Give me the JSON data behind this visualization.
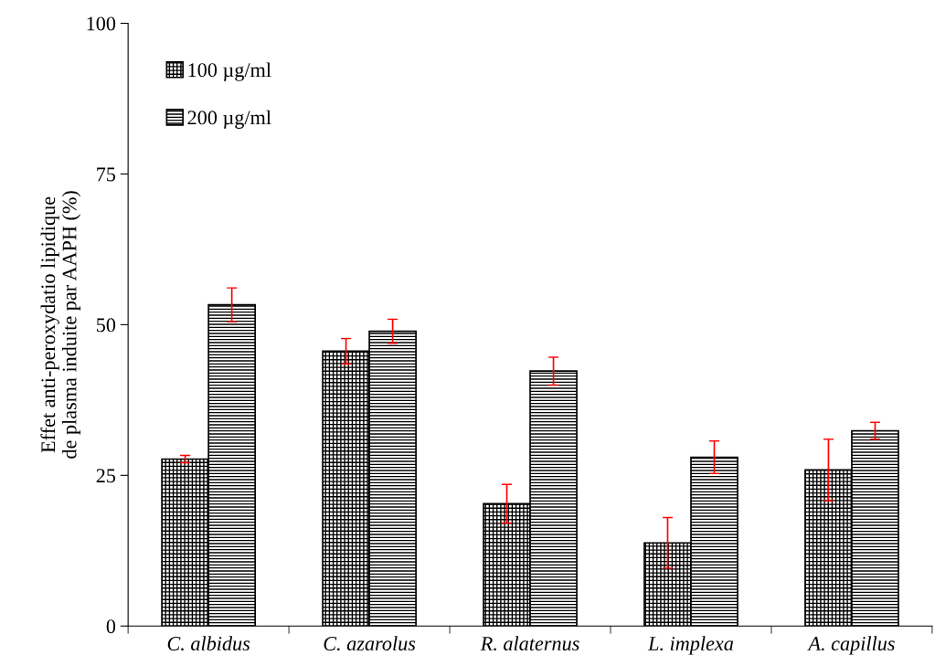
{
  "chart_data": {
    "type": "bar",
    "ylabel": "Effet anti-peroxydatio lipidique\nde plasma induite par AAPH (%)",
    "categories": [
      "C. albidus",
      "C. azarolus",
      "R. alaternus",
      "L. implexa",
      "A. capillus"
    ],
    "series": [
      {
        "name": "100 µg/ml",
        "color": "#000000",
        "values": [
          27.7,
          45.6,
          20.3,
          13.8,
          25.9
        ],
        "errors": [
          0.6,
          2.1,
          3.2,
          4.2,
          5.1
        ]
      },
      {
        "name": "200 µg/ml",
        "color": "#000000",
        "values": [
          53.3,
          48.9,
          42.3,
          28.0,
          32.4
        ],
        "errors": [
          2.8,
          2.0,
          2.3,
          2.7,
          1.4
        ]
      }
    ],
    "ylim": [
      0,
      100
    ],
    "yticks": [
      0,
      25,
      50,
      75,
      100
    ],
    "grid": false,
    "legend": "top left"
  }
}
